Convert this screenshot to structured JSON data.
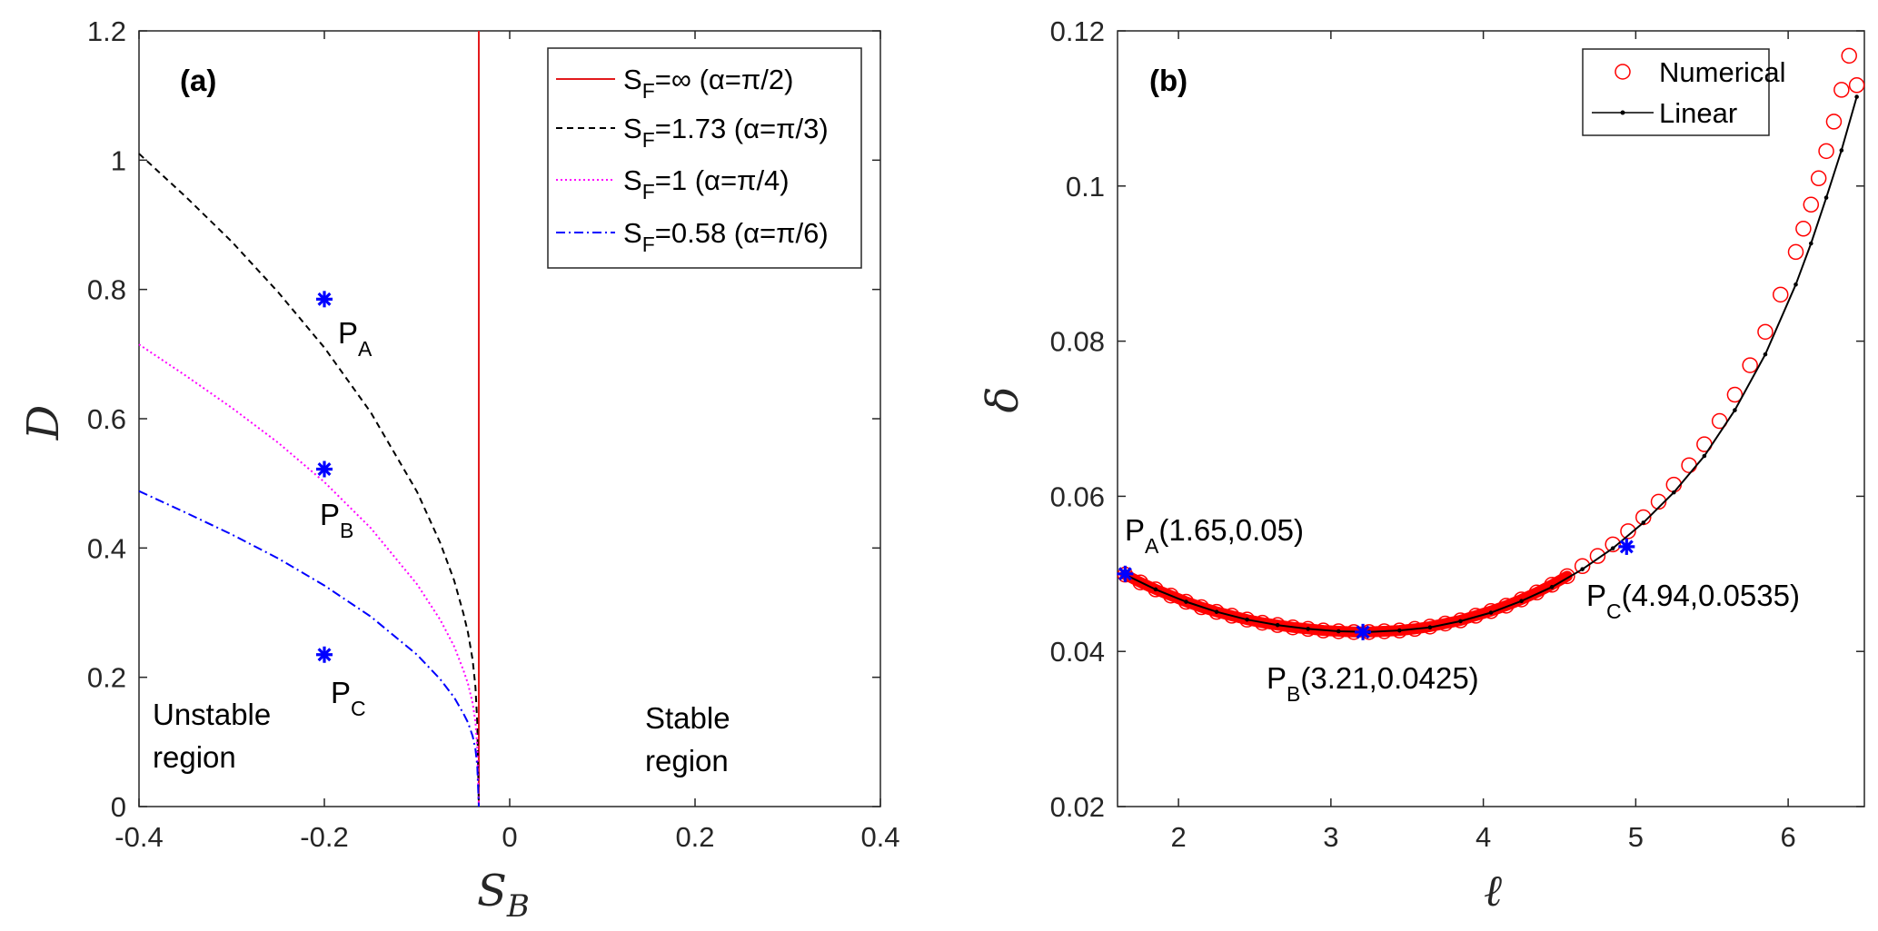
{
  "chart_data": [
    {
      "type": "line",
      "panel_label": "(a)",
      "xlabel": {
        "symbol": "S",
        "subscript": "B"
      },
      "ylabel": "D",
      "xlim": [
        -0.4,
        0.4
      ],
      "ylim": [
        0,
        1.2
      ],
      "xticks": [
        -0.4,
        -0.2,
        0,
        0.2,
        0.4
      ],
      "xtick_labels": [
        "-0.4",
        "-0.2",
        "0",
        "0.2",
        "0.4"
      ],
      "yticks": [
        0,
        0.2,
        0.4,
        0.6,
        0.8,
        1,
        1.2
      ],
      "ytick_labels": [
        "0",
        "0.2",
        "0.4",
        "0.6",
        "0.8",
        "1",
        "1.2"
      ],
      "grid": false,
      "legend_position": "top-right",
      "series": [
        {
          "name": "S_F=∞ (α=π/2)",
          "legend_main": "S",
          "legend_sub": "F",
          "legend_rest": "=∞ (α=π/2)",
          "color": "#e31a1c",
          "style": "solid",
          "x": [
            -0.0333,
            -0.0333
          ],
          "y": [
            0,
            1.2
          ]
        },
        {
          "name": "S_F=1.73 (α=π/3)",
          "legend_main": "S",
          "legend_sub": "F",
          "legend_rest": "=1.73 (α=π/3)",
          "color": "#000000",
          "style": "dashed",
          "x": [
            -0.4,
            -0.35,
            -0.3,
            -0.25,
            -0.2,
            -0.15,
            -0.1,
            -0.075,
            -0.06,
            -0.05,
            -0.045,
            -0.04,
            -0.037,
            -0.035,
            -0.0333
          ],
          "y": [
            1.01,
            0.944,
            0.874,
            0.796,
            0.71,
            0.61,
            0.487,
            0.408,
            0.35,
            0.299,
            0.269,
            0.227,
            0.185,
            0.13,
            0
          ]
        },
        {
          "name": "S_F=1 (α=π/4)",
          "legend_main": "S",
          "legend_sub": "F",
          "legend_rest": "=1 (α=π/4)",
          "color": "#ff00ff",
          "style": "dotted",
          "x": [
            -0.4,
            -0.35,
            -0.3,
            -0.25,
            -0.2,
            -0.15,
            -0.1,
            -0.075,
            -0.06,
            -0.05,
            -0.045,
            -0.04,
            -0.037,
            -0.035,
            -0.0333
          ],
          "y": [
            0.715,
            0.667,
            0.617,
            0.563,
            0.502,
            0.431,
            0.344,
            0.289,
            0.248,
            0.211,
            0.19,
            0.16,
            0.131,
            0.092,
            0
          ]
        },
        {
          "name": "S_F=0.58 (α=π/6)",
          "legend_main": "S",
          "legend_sub": "F",
          "legend_rest": "=0.58 (α=π/6)",
          "color": "#0000ff",
          "style": "dashdot",
          "x": [
            -0.4,
            -0.35,
            -0.3,
            -0.25,
            -0.2,
            -0.15,
            -0.1,
            -0.075,
            -0.06,
            -0.05,
            -0.045,
            -0.04,
            -0.037,
            -0.035,
            -0.0333
          ],
          "y": [
            0.488,
            0.455,
            0.421,
            0.384,
            0.342,
            0.294,
            0.235,
            0.197,
            0.169,
            0.144,
            0.13,
            0.109,
            0.089,
            0.063,
            0
          ]
        }
      ],
      "points": [
        {
          "name": "P_A",
          "main": "P",
          "sub": "A",
          "x": -0.2,
          "y": 0.785,
          "color": "#0000ff"
        },
        {
          "name": "P_B",
          "main": "P",
          "sub": "B",
          "x": -0.2,
          "y": 0.522,
          "color": "#0000ff"
        },
        {
          "name": "P_C",
          "main": "P",
          "sub": "C",
          "x": -0.2,
          "y": 0.235,
          "color": "#0000ff"
        }
      ],
      "annotations": [
        {
          "id": "unstable",
          "lines": [
            "Unstable",
            "region"
          ]
        },
        {
          "id": "stable",
          "lines": [
            "Stable",
            "region"
          ]
        }
      ]
    },
    {
      "type": "line",
      "panel_label": "(b)",
      "xlabel": "ℓ",
      "ylabel": "δ",
      "xlim": [
        1.6,
        6.5
      ],
      "ylim": [
        0.02,
        0.12
      ],
      "xticks": [
        2,
        3,
        4,
        5,
        6
      ],
      "xtick_labels": [
        "2",
        "3",
        "4",
        "5",
        "6"
      ],
      "yticks": [
        0.02,
        0.04,
        0.06,
        0.08,
        0.1,
        0.12
      ],
      "ytick_labels": [
        "0.02",
        "0.04",
        "0.06",
        "0.08",
        "0.1",
        "0.12"
      ],
      "grid": false,
      "legend_position": "top-right",
      "series": [
        {
          "name": "Numerical",
          "color": "#ff0000",
          "style": "open-circle-markers",
          "x": [
            1.65,
            1.75,
            1.85,
            1.95,
            2.05,
            2.15,
            2.25,
            2.35,
            2.45,
            2.55,
            2.65,
            2.75,
            2.85,
            2.95,
            3.05,
            3.15,
            3.25,
            3.35,
            3.45,
            3.55,
            3.65,
            3.75,
            3.85,
            3.95,
            4.05,
            4.15,
            4.25,
            4.35,
            4.45,
            4.55,
            4.65,
            4.75,
            4.85,
            4.95,
            5.05,
            5.15,
            5.25,
            5.35,
            5.45,
            5.55,
            5.65,
            5.75,
            5.85,
            5.95,
            6.05,
            6.1,
            6.15,
            6.2,
            6.25,
            6.3,
            6.35,
            6.4,
            6.45
          ],
          "y": [
            0.0499,
            0.0489,
            0.048,
            0.0472,
            0.0464,
            0.0457,
            0.0451,
            0.0446,
            0.0441,
            0.0437,
            0.0434,
            0.0431,
            0.0429,
            0.0427,
            0.0426,
            0.0425,
            0.0425,
            0.0426,
            0.0427,
            0.0429,
            0.0432,
            0.0436,
            0.044,
            0.0446,
            0.0452,
            0.0459,
            0.0467,
            0.0476,
            0.0486,
            0.0497,
            0.051,
            0.0523,
            0.0538,
            0.0555,
            0.0573,
            0.0593,
            0.0615,
            0.064,
            0.0667,
            0.0697,
            0.0731,
            0.0769,
            0.0812,
            0.086,
            0.0915,
            0.0945,
            0.0976,
            0.101,
            0.1045,
            0.1083,
            0.1124,
            0.1168,
            0.113
          ]
        },
        {
          "name": "Linear",
          "color": "#000000",
          "style": "solid-with-dots",
          "x": [
            1.65,
            1.85,
            2.05,
            2.25,
            2.45,
            2.65,
            2.85,
            3.05,
            3.25,
            3.45,
            3.65,
            3.85,
            4.05,
            4.25,
            4.45,
            4.65,
            4.85,
            5.05,
            5.25,
            5.45,
            5.65,
            5.85,
            6.05,
            6.15,
            6.25,
            6.35,
            6.45
          ],
          "y": [
            0.0499,
            0.048,
            0.0464,
            0.0451,
            0.0441,
            0.0434,
            0.0429,
            0.0426,
            0.0425,
            0.0427,
            0.0431,
            0.0439,
            0.045,
            0.0465,
            0.0483,
            0.0506,
            0.0533,
            0.0566,
            0.0605,
            0.0652,
            0.0711,
            0.0783,
            0.0873,
            0.0926,
            0.0985,
            0.1046,
            0.1115
          ]
        }
      ],
      "points": [
        {
          "name": "P_A(1.65,0.05)",
          "main": "P",
          "sub": "A",
          "rest": "(1.65,0.05)",
          "x": 1.65,
          "y": 0.05,
          "color": "#0000ff"
        },
        {
          "name": "P_B(3.21,0.0425)",
          "main": "P",
          "sub": "B",
          "rest": "(3.21,0.0425)",
          "x": 3.21,
          "y": 0.0425,
          "color": "#0000ff"
        },
        {
          "name": "P_C(4.94,0.0535)",
          "main": "P",
          "sub": "C",
          "rest": "(4.94,0.0535)",
          "x": 4.94,
          "y": 0.0535,
          "color": "#0000ff"
        }
      ]
    }
  ]
}
